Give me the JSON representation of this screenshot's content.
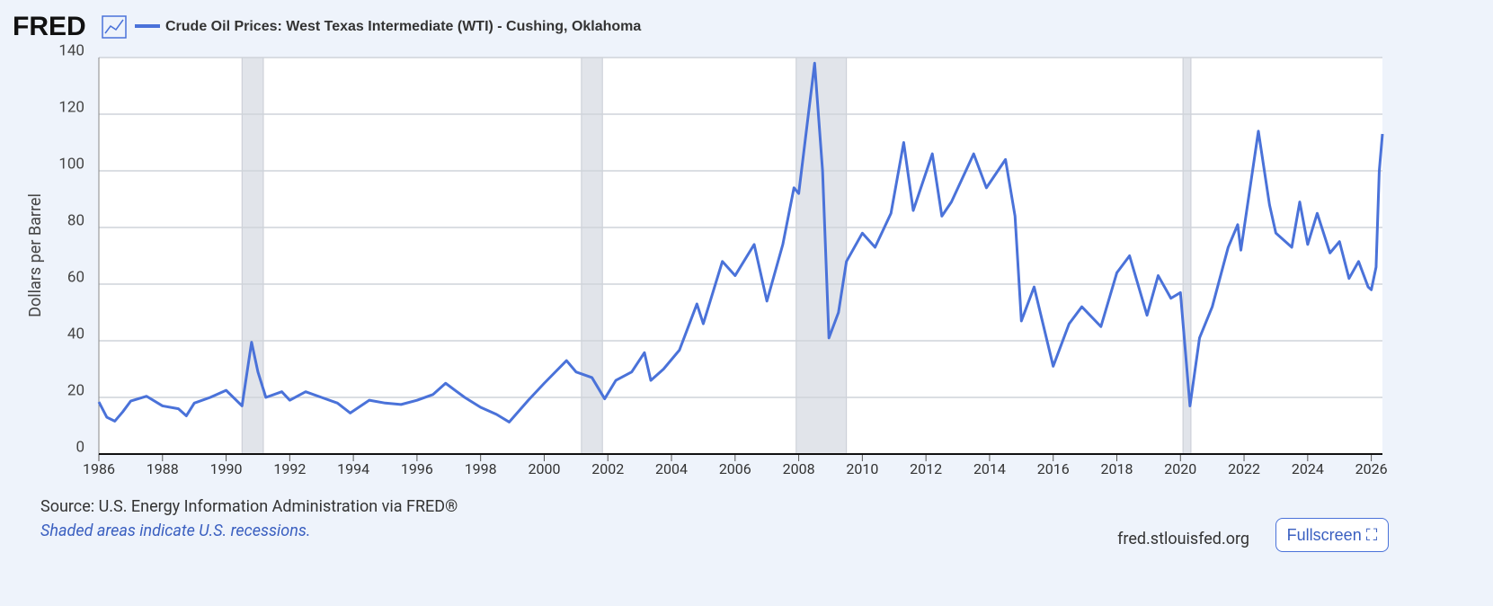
{
  "brand": "FRED",
  "fullscreen": "Fullscreen",
  "site": "fred.stlouisfed.org",
  "chart_data": {
    "type": "line",
    "title": "Crude Oil Prices: West Texas Intermediate (WTI) - Cushing, Oklahoma",
    "y_label": "Dollars per Barrel",
    "source": "Source: U.S. Energy Information Administration via FRED®",
    "note": "Shaded areas indicate U.S. recessions.",
    "xlim": [
      1986,
      2026.35
    ],
    "ylim": [
      0,
      140
    ],
    "xticks": [
      1986,
      1988,
      1990,
      1992,
      1994,
      1996,
      1998,
      2000,
      2002,
      2004,
      2006,
      2008,
      2010,
      2012,
      2014,
      2016,
      2018,
      2020,
      2022,
      2024,
      2026
    ],
    "yticks": [
      0,
      20,
      40,
      60,
      80,
      100,
      120,
      140
    ],
    "grid": true,
    "recessions": [
      [
        1990.5,
        1991.17
      ],
      [
        2001.17,
        2001.83
      ],
      [
        2007.92,
        2009.5
      ],
      [
        2020.08,
        2020.33
      ]
    ],
    "recession_color": "#e1e4ea",
    "series": [
      {
        "name": "Crude Oil Prices: West Texas Intermediate (WTI) - Cushing, Oklahoma",
        "color": "#4a72d9",
        "x": [
          1986,
          1986.25,
          1986.5,
          1986.75,
          1987,
          1987.5,
          1988,
          1988.5,
          1988.75,
          1989,
          1989.5,
          1990,
          1990.5,
          1990.8,
          1991,
          1991.25,
          1991.75,
          1992,
          1992.5,
          1993,
          1993.5,
          1993.9,
          1994.5,
          1995,
          1995.5,
          1996,
          1996.5,
          1996.9,
          1997.5,
          1998,
          1998.5,
          1998.9,
          1999.5,
          2000,
          2000.7,
          2001,
          2001.5,
          2001.9,
          2002.25,
          2002.75,
          2003.15,
          2003.35,
          2003.75,
          2004.25,
          2004.8,
          2005,
          2005.6,
          2006,
          2006.6,
          2007,
          2007.5,
          2007.85,
          2008,
          2008.5,
          2008.75,
          2008.95,
          2009.25,
          2009.5,
          2010,
          2010.4,
          2010.9,
          2011.3,
          2011.6,
          2012.2,
          2012.5,
          2012.8,
          2013.5,
          2013.9,
          2014.5,
          2014.8,
          2015,
          2015.4,
          2015.7,
          2016,
          2016.5,
          2016.9,
          2017.5,
          2018,
          2018.4,
          2018.95,
          2019.3,
          2019.7,
          2020,
          2020.3,
          2020.6,
          2021,
          2021.5,
          2021.8,
          2021.9,
          2022.45,
          2022.8,
          2023,
          2023.5,
          2023.75,
          2024,
          2024.3,
          2024.7,
          2025,
          2025.3,
          2025.6,
          2025.9,
          2026,
          2026.15,
          2026.25,
          2026.35
        ],
        "values": [
          18.4,
          13,
          11.6,
          14.9,
          18.7,
          20.4,
          17,
          16,
          13.5,
          18,
          20,
          22.5,
          17,
          39.5,
          29,
          20,
          22,
          19,
          22,
          20,
          18,
          14.5,
          19,
          18,
          17.5,
          19,
          21,
          25,
          20,
          16.5,
          14,
          11.3,
          19,
          25,
          33,
          29,
          27,
          19.5,
          26,
          29,
          35.8,
          26,
          30,
          36.7,
          53,
          46,
          68,
          63,
          74,
          54,
          74,
          94,
          92,
          138,
          100,
          41,
          50,
          68,
          78,
          73,
          85,
          110,
          86,
          106,
          84,
          89,
          106,
          94,
          104,
          84,
          47,
          59,
          45,
          31,
          46,
          52,
          45,
          64,
          70,
          49,
          63,
          55,
          57,
          17,
          41,
          52,
          73,
          81,
          72,
          114,
          88,
          78,
          73,
          89,
          74,
          85,
          71,
          75,
          62,
          68,
          59,
          58,
          66,
          100,
          113
        ]
      }
    ]
  }
}
